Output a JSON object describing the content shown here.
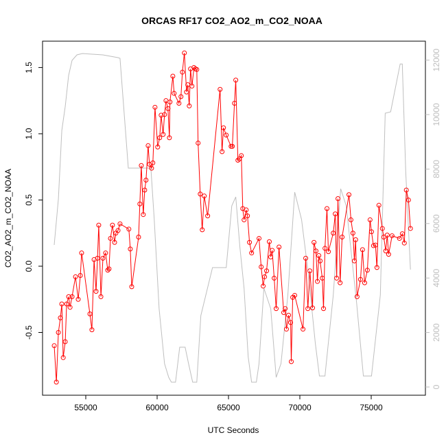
{
  "chart_data": {
    "type": "line",
    "title": "ORCAS RF17 CO2_AO2_m_CO2_NOAA",
    "x_label": "UTC Seconds",
    "y_label": "CO2_AO2_m_CO2_NOAA",
    "xlim": [
      51971,
      78798
    ],
    "ylim": [
      -0.974,
      1.699
    ],
    "y2lim": [
      -302,
      12695
    ],
    "xticks": [
      55000,
      60000,
      65000,
      70000,
      75000
    ],
    "yticks": [
      -0.5,
      {
        "value": 0,
        "label": "0.0"
      },
      0.5,
      {
        "value": 1,
        "label": "1.0"
      },
      1.5
    ],
    "y2ticks": [
      0,
      2000,
      4000,
      6000,
      8000,
      10000,
      12000
    ],
    "series": [
      {
        "color": "#ff0000",
        "markers": true,
        "x": [
          52790,
          52940,
          53080,
          53220,
          53320,
          53420,
          53560,
          53660,
          53800,
          53900,
          54040,
          54280,
          54470,
          54620,
          54710,
          55290,
          55430,
          55580,
          55720,
          55820,
          55910,
          56060,
          56200,
          56390,
          56540,
          56630,
          56730,
          56870,
          57020,
          57110,
          57260,
          57400,
          58020,
          58120,
          58220,
          58700,
          58790,
          58890,
          59030,
          59130,
          59220,
          59370,
          59460,
          59610,
          59700,
          59850,
          60040,
          60180,
          60280,
          60420,
          60520,
          60620,
          60760,
          60860,
          60900,
          61100,
          61190,
          61530,
          61670,
          61770,
          61910,
          62060,
          62150,
          62250,
          62340,
          62440,
          62580,
          62680,
          62780,
          62870,
          63020,
          63160,
          63300,
          63540,
          64410,
          64550,
          64650,
          64840,
          65180,
          65270,
          65420,
          65510,
          65660,
          65760,
          65900,
          66000,
          66090,
          66240,
          66330,
          66470,
          66620,
          67140,
          67290,
          67430,
          67530,
          67670,
          67860,
          67960,
          68060,
          68200,
          68340,
          68540,
          68870,
          68970,
          69060,
          69210,
          69350,
          69400,
          69500,
          69640,
          70220,
          70410,
          70560,
          70700,
          70890,
          70990,
          71130,
          71230,
          71330,
          71420,
          71570,
          71660,
          71760,
          71900,
          72000,
          72340,
          72480,
          72580,
          72670,
          72820,
          72960,
          73440,
          73580,
          73720,
          73820,
          73910,
          74010,
          74250,
          74390,
          74540,
          74730,
          74920,
          75020,
          75160,
          75300,
          75400,
          75540,
          75780,
          75880,
          76020,
          76120,
          76220,
          76460,
          76980,
          77180,
          77320,
          77460,
          77610,
          77750
        ],
        "values": [
          -0.6,
          -0.875,
          -0.5,
          -0.39,
          -0.285,
          -0.69,
          -0.57,
          -0.285,
          -0.23,
          -0.31,
          -0.23,
          -0.08,
          -0.25,
          -0.07,
          0.1,
          -0.36,
          -0.48,
          0.05,
          -0.19,
          0.06,
          0.31,
          -0.23,
          0.06,
          0.1,
          -0.03,
          -0.02,
          0.21,
          0.31,
          0.18,
          0.25,
          0.27,
          0.32,
          0.28,
          0.13,
          -0.155,
          0.22,
          0.47,
          0.76,
          0.39,
          0.575,
          0.65,
          0.91,
          0.77,
          0.74,
          0.78,
          1.2,
          0.9,
          0.97,
          1.14,
          0.995,
          1.145,
          1.25,
          1.19,
          0.97,
          1.24,
          1.435,
          1.305,
          1.23,
          1.28,
          1.465,
          1.61,
          1.315,
          1.37,
          1.21,
          1.49,
          1.36,
          1.5,
          1.49,
          1.485,
          0.93,
          0.545,
          0.275,
          0.53,
          0.38,
          1.335,
          0.865,
          1.045,
          0.99,
          0.905,
          0.905,
          1.23,
          1.405,
          0.8,
          0.81,
          0.835,
          0.435,
          0.35,
          0.425,
          0.38,
          0.18,
          0.1,
          0.21,
          -0.005,
          -0.15,
          -0.08,
          -0.035,
          0.185,
          0.07,
          0.12,
          -0.09,
          -0.32,
          0.145,
          -0.35,
          -0.32,
          -0.475,
          -0.37,
          -0.425,
          -0.72,
          -0.235,
          -0.22,
          -0.475,
          0.06,
          -0.32,
          -0.035,
          -0.315,
          0.18,
          0.115,
          -0.115,
          0.08,
          0.04,
          -0.09,
          -0.32,
          0.135,
          0.435,
          0.11,
          0.25,
          0.395,
          -0.09,
          0.51,
          -0.125,
          0.22,
          0.54,
          0.35,
          0.25,
          0.04,
          0.2,
          -0.23,
          -0.1,
          0.125,
          -0.125,
          -0.03,
          0.35,
          0.26,
          0.155,
          0.16,
          -0.01,
          0.46,
          0.285,
          0.22,
          0.115,
          0.235,
          0.09,
          0.23,
          0.21,
          0.245,
          0.175,
          0.575,
          0.5,
          0.285
        ]
      },
      {
        "color": "#bebebe",
        "axis": "y2",
        "markers": false,
        "x": [
          52790,
          53080,
          53320,
          53560,
          53800,
          54040,
          54380,
          54760,
          56200,
          57260,
          57400,
          57980,
          59560,
          59800,
          60140,
          60520,
          60810,
          61000,
          61290,
          61580,
          61960,
          62200,
          62490,
          62780,
          63060,
          63880,
          64840,
          65230,
          65510,
          65800,
          66090,
          66380,
          66620,
          66950,
          67140,
          67480,
          67960,
          68340,
          68680,
          69160,
          69640,
          70120,
          70600,
          71080,
          71370,
          71760,
          72340,
          72860,
          73250,
          73970,
          74450,
          75020,
          75640,
          75980,
          76360,
          77030,
          77180,
          77420,
          77750
        ],
        "values": [
          5214,
          6902,
          9421,
          10302,
          11436,
          11990,
          12191,
          12242,
          12191,
          12091,
          12065,
          8035,
          8035,
          6146,
          2872,
          856,
          353,
          176,
          176,
          1461,
          1461,
          856,
          176,
          176,
          2620,
          4383,
          4383,
          6650,
          6977,
          5139,
          3627,
          1108,
          176,
          176,
          856,
          3627,
          2872,
          353,
          856,
          3375,
          7154,
          6146,
          4131,
          1612,
          403,
          403,
          3375,
          7280,
          6650,
          3123,
          403,
          403,
          3375,
          10050,
          10100,
          11860,
          11860,
          7910,
          4310
        ]
      }
    ]
  }
}
